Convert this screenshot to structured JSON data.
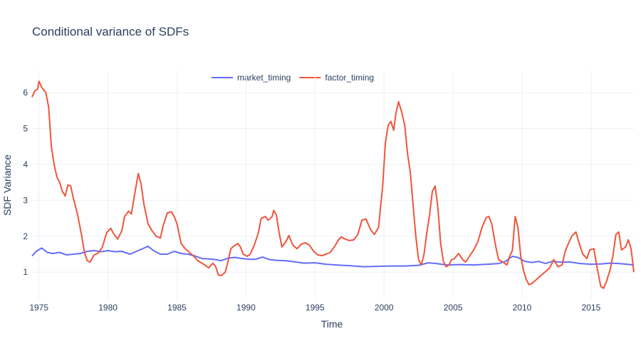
{
  "chart_data": {
    "type": "line",
    "title": "Conditional variance of SDFs",
    "xlabel": "Time",
    "ylabel": "SDF Variance",
    "xlim": [
      1974.5,
      2018.1
    ],
    "ylim": [
      0.25,
      6.6
    ],
    "x_ticks": [
      1975,
      1980,
      1985,
      1990,
      1995,
      2000,
      2005,
      2010,
      2015
    ],
    "y_ticks": [
      1,
      2,
      3,
      4,
      5,
      6
    ],
    "grid": true,
    "legend_position": "top-center",
    "series": [
      {
        "name": "market_timing",
        "color": "#636efa",
        "points": [
          [
            1974.5,
            1.45
          ],
          [
            1974.8,
            1.58
          ],
          [
            1975.2,
            1.67
          ],
          [
            1975.6,
            1.55
          ],
          [
            1976.0,
            1.52
          ],
          [
            1976.5,
            1.55
          ],
          [
            1977.0,
            1.48
          ],
          [
            1977.5,
            1.5
          ],
          [
            1978.0,
            1.52
          ],
          [
            1978.5,
            1.58
          ],
          [
            1979.0,
            1.6
          ],
          [
            1979.5,
            1.57
          ],
          [
            1980.0,
            1.6
          ],
          [
            1980.5,
            1.57
          ],
          [
            1981.0,
            1.58
          ],
          [
            1981.6,
            1.5
          ],
          [
            1982.0,
            1.57
          ],
          [
            1982.5,
            1.65
          ],
          [
            1982.9,
            1.72
          ],
          [
            1983.3,
            1.6
          ],
          [
            1983.8,
            1.5
          ],
          [
            1984.3,
            1.5
          ],
          [
            1984.8,
            1.58
          ],
          [
            1985.3,
            1.52
          ],
          [
            1985.8,
            1.5
          ],
          [
            1986.3,
            1.45
          ],
          [
            1986.8,
            1.38
          ],
          [
            1987.3,
            1.37
          ],
          [
            1987.8,
            1.35
          ],
          [
            1988.2,
            1.32
          ],
          [
            1988.7,
            1.39
          ],
          [
            1989.2,
            1.41
          ],
          [
            1989.7,
            1.38
          ],
          [
            1990.2,
            1.36
          ],
          [
            1990.7,
            1.36
          ],
          [
            1991.2,
            1.42
          ],
          [
            1991.7,
            1.35
          ],
          [
            1992.2,
            1.33
          ],
          [
            1992.8,
            1.32
          ],
          [
            1993.5,
            1.29
          ],
          [
            1994.2,
            1.25
          ],
          [
            1995.0,
            1.26
          ],
          [
            1995.8,
            1.22
          ],
          [
            1996.5,
            1.2
          ],
          [
            1997.5,
            1.18
          ],
          [
            1998.5,
            1.15
          ],
          [
            1999.5,
            1.16
          ],
          [
            2000.5,
            1.17
          ],
          [
            2001.5,
            1.17
          ],
          [
            2002.5,
            1.19
          ],
          [
            2003.2,
            1.26
          ],
          [
            2003.8,
            1.24
          ],
          [
            2004.5,
            1.2
          ],
          [
            2005.5,
            1.21
          ],
          [
            2006.5,
            1.2
          ],
          [
            2007.5,
            1.22
          ],
          [
            2008.3,
            1.24
          ],
          [
            2008.8,
            1.3
          ],
          [
            2009.3,
            1.44
          ],
          [
            2009.7,
            1.41
          ],
          [
            2010.2,
            1.3
          ],
          [
            2010.7,
            1.27
          ],
          [
            2011.2,
            1.3
          ],
          [
            2011.7,
            1.24
          ],
          [
            2012.2,
            1.3
          ],
          [
            2012.7,
            1.28
          ],
          [
            2013.5,
            1.28
          ],
          [
            2014.2,
            1.24
          ],
          [
            2015.0,
            1.22
          ],
          [
            2015.8,
            1.23
          ],
          [
            2016.3,
            1.25
          ],
          [
            2017.0,
            1.24
          ],
          [
            2017.6,
            1.22
          ],
          [
            2018.1,
            1.2
          ]
        ]
      },
      {
        "name": "factor_timing",
        "color": "#ef553b",
        "points": [
          [
            1974.5,
            5.88
          ],
          [
            1974.7,
            6.05
          ],
          [
            1974.9,
            6.1
          ],
          [
            1975.0,
            6.32
          ],
          [
            1975.2,
            6.15
          ],
          [
            1975.5,
            6.0
          ],
          [
            1975.7,
            5.6
          ],
          [
            1975.9,
            4.5
          ],
          [
            1976.1,
            4.0
          ],
          [
            1976.3,
            3.65
          ],
          [
            1976.5,
            3.5
          ],
          [
            1976.7,
            3.25
          ],
          [
            1976.9,
            3.12
          ],
          [
            1977.1,
            3.43
          ],
          [
            1977.3,
            3.4
          ],
          [
            1977.5,
            3.05
          ],
          [
            1977.8,
            2.6
          ],
          [
            1978.1,
            2.0
          ],
          [
            1978.3,
            1.55
          ],
          [
            1978.5,
            1.32
          ],
          [
            1978.7,
            1.28
          ],
          [
            1979.0,
            1.48
          ],
          [
            1979.3,
            1.53
          ],
          [
            1979.6,
            1.7
          ],
          [
            1979.9,
            2.1
          ],
          [
            1980.2,
            2.22
          ],
          [
            1980.4,
            2.08
          ],
          [
            1980.7,
            1.92
          ],
          [
            1981.0,
            2.15
          ],
          [
            1981.2,
            2.55
          ],
          [
            1981.5,
            2.7
          ],
          [
            1981.7,
            2.62
          ],
          [
            1981.9,
            3.1
          ],
          [
            1982.2,
            3.75
          ],
          [
            1982.4,
            3.45
          ],
          [
            1982.6,
            2.9
          ],
          [
            1982.9,
            2.35
          ],
          [
            1983.2,
            2.15
          ],
          [
            1983.5,
            2.0
          ],
          [
            1983.8,
            1.95
          ],
          [
            1984.0,
            2.3
          ],
          [
            1984.3,
            2.65
          ],
          [
            1984.6,
            2.68
          ],
          [
            1984.8,
            2.55
          ],
          [
            1985.0,
            2.35
          ],
          [
            1985.3,
            1.8
          ],
          [
            1985.6,
            1.65
          ],
          [
            1985.9,
            1.55
          ],
          [
            1986.2,
            1.45
          ],
          [
            1986.5,
            1.32
          ],
          [
            1986.8,
            1.25
          ],
          [
            1987.0,
            1.2
          ],
          [
            1987.3,
            1.12
          ],
          [
            1987.6,
            1.25
          ],
          [
            1987.8,
            1.15
          ],
          [
            1988.0,
            0.92
          ],
          [
            1988.2,
            0.9
          ],
          [
            1988.5,
            1.0
          ],
          [
            1988.7,
            1.3
          ],
          [
            1988.9,
            1.65
          ],
          [
            1989.1,
            1.72
          ],
          [
            1989.4,
            1.8
          ],
          [
            1989.6,
            1.7
          ],
          [
            1989.8,
            1.5
          ],
          [
            1990.1,
            1.44
          ],
          [
            1990.3,
            1.5
          ],
          [
            1990.6,
            1.75
          ],
          [
            1990.9,
            2.1
          ],
          [
            1991.1,
            2.5
          ],
          [
            1991.4,
            2.55
          ],
          [
            1991.6,
            2.45
          ],
          [
            1991.9,
            2.55
          ],
          [
            1992.0,
            2.72
          ],
          [
            1992.2,
            2.6
          ],
          [
            1992.4,
            2.1
          ],
          [
            1992.6,
            1.7
          ],
          [
            1992.9,
            1.85
          ],
          [
            1993.1,
            2.02
          ],
          [
            1993.4,
            1.75
          ],
          [
            1993.7,
            1.65
          ],
          [
            1994.0,
            1.78
          ],
          [
            1994.3,
            1.82
          ],
          [
            1994.6,
            1.75
          ],
          [
            1994.9,
            1.58
          ],
          [
            1995.2,
            1.48
          ],
          [
            1995.5,
            1.46
          ],
          [
            1995.8,
            1.5
          ],
          [
            1996.1,
            1.55
          ],
          [
            1996.4,
            1.7
          ],
          [
            1996.7,
            1.9
          ],
          [
            1996.9,
            1.98
          ],
          [
            1997.2,
            1.92
          ],
          [
            1997.5,
            1.88
          ],
          [
            1997.8,
            1.9
          ],
          [
            1998.1,
            2.05
          ],
          [
            1998.4,
            2.45
          ],
          [
            1998.7,
            2.48
          ],
          [
            1999.0,
            2.2
          ],
          [
            1999.3,
            2.05
          ],
          [
            1999.6,
            2.25
          ],
          [
            1999.9,
            3.4
          ],
          [
            2000.1,
            4.6
          ],
          [
            2000.3,
            5.1
          ],
          [
            2000.5,
            5.2
          ],
          [
            2000.7,
            4.95
          ],
          [
            2000.85,
            5.4
          ],
          [
            2001.05,
            5.75
          ],
          [
            2001.25,
            5.5
          ],
          [
            2001.5,
            5.1
          ],
          [
            2001.7,
            4.3
          ],
          [
            2001.9,
            3.8
          ],
          [
            2002.1,
            2.9
          ],
          [
            2002.3,
            2.0
          ],
          [
            2002.5,
            1.35
          ],
          [
            2002.7,
            1.2
          ],
          [
            2002.9,
            1.5
          ],
          [
            2003.1,
            2.1
          ],
          [
            2003.3,
            2.6
          ],
          [
            2003.5,
            3.25
          ],
          [
            2003.7,
            3.4
          ],
          [
            2003.9,
            2.8
          ],
          [
            2004.1,
            1.8
          ],
          [
            2004.3,
            1.3
          ],
          [
            2004.5,
            1.15
          ],
          [
            2004.7,
            1.2
          ],
          [
            2004.9,
            1.35
          ],
          [
            2005.1,
            1.38
          ],
          [
            2005.4,
            1.52
          ],
          [
            2005.7,
            1.35
          ],
          [
            2005.9,
            1.28
          ],
          [
            2006.2,
            1.45
          ],
          [
            2006.5,
            1.62
          ],
          [
            2006.8,
            1.85
          ],
          [
            2007.1,
            2.25
          ],
          [
            2007.4,
            2.52
          ],
          [
            2007.6,
            2.55
          ],
          [
            2007.8,
            2.35
          ],
          [
            2008.1,
            1.7
          ],
          [
            2008.3,
            1.35
          ],
          [
            2008.6,
            1.28
          ],
          [
            2008.9,
            1.2
          ],
          [
            2009.1,
            1.45
          ],
          [
            2009.3,
            1.6
          ],
          [
            2009.5,
            2.55
          ],
          [
            2009.7,
            2.25
          ],
          [
            2009.9,
            1.45
          ],
          [
            2010.1,
            1.05
          ],
          [
            2010.3,
            0.8
          ],
          [
            2010.5,
            0.65
          ],
          [
            2010.7,
            0.68
          ],
          [
            2011.0,
            0.78
          ],
          [
            2011.2,
            0.85
          ],
          [
            2011.5,
            0.95
          ],
          [
            2011.8,
            1.05
          ],
          [
            2012.0,
            1.12
          ],
          [
            2012.3,
            1.35
          ],
          [
            2012.6,
            1.15
          ],
          [
            2012.9,
            1.2
          ],
          [
            2013.1,
            1.55
          ],
          [
            2013.3,
            1.75
          ],
          [
            2013.6,
            2.0
          ],
          [
            2013.9,
            2.12
          ],
          [
            2014.1,
            1.85
          ],
          [
            2014.4,
            1.5
          ],
          [
            2014.7,
            1.38
          ],
          [
            2014.9,
            1.62
          ],
          [
            2015.2,
            1.65
          ],
          [
            2015.4,
            1.2
          ],
          [
            2015.7,
            0.6
          ],
          [
            2015.9,
            0.55
          ],
          [
            2016.1,
            0.72
          ],
          [
            2016.4,
            1.1
          ],
          [
            2016.6,
            1.5
          ],
          [
            2016.8,
            2.05
          ],
          [
            2017.0,
            2.12
          ],
          [
            2017.2,
            1.62
          ],
          [
            2017.5,
            1.7
          ],
          [
            2017.7,
            1.9
          ],
          [
            2017.9,
            1.65
          ],
          [
            2018.1,
            1.0
          ]
        ]
      }
    ]
  }
}
